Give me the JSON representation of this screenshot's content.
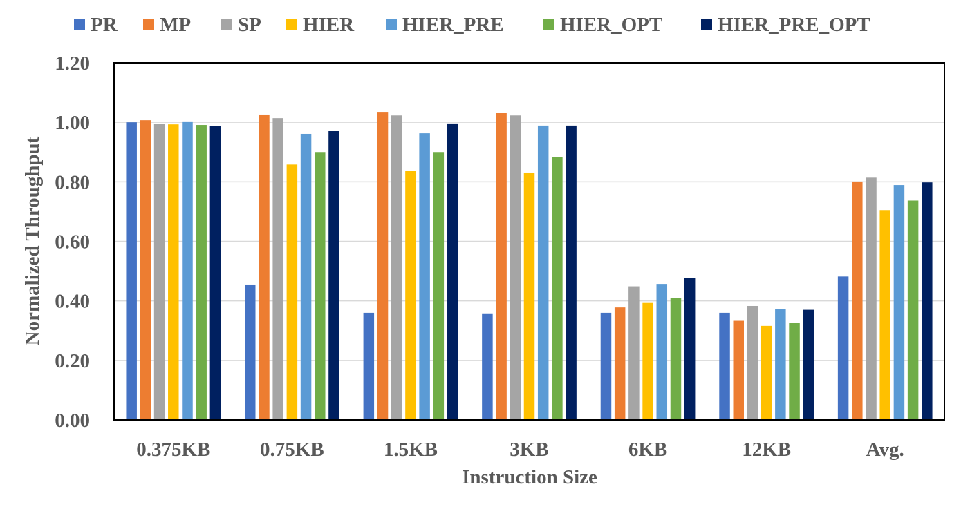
{
  "chart_data": {
    "type": "bar",
    "title": "",
    "xlabel": "Instruction Size",
    "ylabel": "Normalized Throughput",
    "ylim": [
      0,
      1.2
    ],
    "yticks": [
      "0.00",
      "0.20",
      "0.40",
      "0.60",
      "0.80",
      "1.00",
      "1.20"
    ],
    "grid": true,
    "legend_position": "top",
    "categories": [
      "0.375KB",
      "0.75KB",
      "1.5KB",
      "3KB",
      "6KB",
      "12KB",
      "Avg."
    ],
    "series": [
      {
        "name": "PR",
        "color": "#4472C4",
        "values": [
          1.0,
          0.455,
          0.36,
          0.358,
          0.36,
          0.36,
          0.482
        ]
      },
      {
        "name": "MP",
        "color": "#ED7D31",
        "values": [
          1.007,
          1.026,
          1.035,
          1.032,
          0.378,
          0.333,
          0.801
        ]
      },
      {
        "name": "SP",
        "color": "#A5A5A5",
        "values": [
          0.995,
          1.014,
          1.023,
          1.023,
          0.449,
          0.383,
          0.814
        ]
      },
      {
        "name": "HIER",
        "color": "#FFC000",
        "values": [
          0.993,
          0.858,
          0.837,
          0.831,
          0.393,
          0.316,
          0.705
        ]
      },
      {
        "name": "HIER_PRE",
        "color": "#5B9BD5",
        "values": [
          1.003,
          0.961,
          0.963,
          0.989,
          0.457,
          0.372,
          0.789
        ]
      },
      {
        "name": "HIER_OPT",
        "color": "#70AD47",
        "values": [
          0.991,
          0.9,
          0.9,
          0.884,
          0.41,
          0.327,
          0.737
        ]
      },
      {
        "name": "HIER_PRE_OPT",
        "color": "#002060",
        "values": [
          0.988,
          0.972,
          0.996,
          0.989,
          0.476,
          0.37,
          0.798
        ]
      }
    ]
  }
}
